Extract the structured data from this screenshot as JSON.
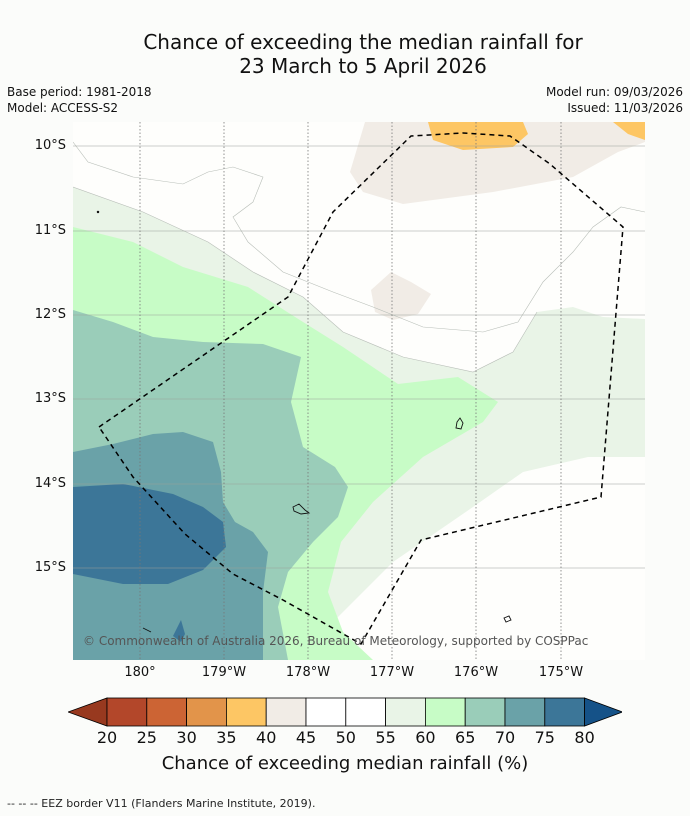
{
  "title_line1": "Chance of exceeding the median rainfall for",
  "title_line2": "23 March to 5 April 2026",
  "base_period": "Base period: 1981-2018",
  "model": "Model: ACCESS-S2",
  "model_run": "Model run: 09/03/2026",
  "issued": "Issued: 11/03/2026",
  "lat_labels": [
    "10°S",
    "11°S",
    "12°S",
    "13°S",
    "14°S",
    "15°S"
  ],
  "lon_labels": [
    "180°",
    "179°W",
    "178°W",
    "177°W",
    "176°W",
    "175°W"
  ],
  "copyright": "© Commonwealth of Australia 2026, Bureau of Meteorology, supported by COSPPac",
  "colorbar": {
    "ticks": [
      "20",
      "25",
      "30",
      "35",
      "40",
      "45",
      "50",
      "55",
      "60",
      "65",
      "70",
      "75",
      "80"
    ],
    "colors": [
      "#b3472a",
      "#cc6434",
      "#e2944a",
      "#fdc664",
      "#f1ece6",
      "#ffffff",
      "#ffffff",
      "#e9f4e7",
      "#c7fcc6",
      "#9acdb9",
      "#6aa2a8",
      "#3c7698"
    ],
    "low_color": "#98391f",
    "high_color": "#155288",
    "label": "Chance of exceeding median rainfall (%)"
  },
  "footnote": "--  --  -- EEZ border V11 (Flanders Marine Institute, 2019)."
}
